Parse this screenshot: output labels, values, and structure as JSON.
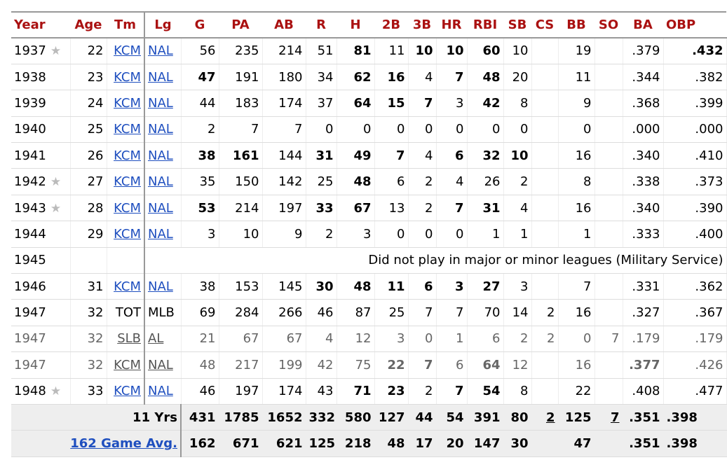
{
  "columns": [
    "Year",
    "Age",
    "Tm",
    "Lg",
    "G",
    "PA",
    "AB",
    "R",
    "H",
    "2B",
    "3B",
    "HR",
    "RBI",
    "SB",
    "CS",
    "BB",
    "SO",
    "BA",
    "OBP"
  ],
  "rows": [
    {
      "type": "season",
      "star": true,
      "style": "",
      "cells": [
        {
          "v": "1937"
        },
        {
          "v": "22"
        },
        {
          "v": "KCM",
          "link": true
        },
        {
          "v": "NAL",
          "link": true
        },
        {
          "v": "56"
        },
        {
          "v": "235"
        },
        {
          "v": "214"
        },
        {
          "v": "51"
        },
        {
          "v": "81",
          "b": true
        },
        {
          "v": "11"
        },
        {
          "v": "10",
          "b": true
        },
        {
          "v": "10",
          "b": true
        },
        {
          "v": "60",
          "b": true
        },
        {
          "v": "10"
        },
        {
          "v": ""
        },
        {
          "v": "19"
        },
        {
          "v": ""
        },
        {
          "v": ".379"
        },
        {
          "v": ".432",
          "b": true
        }
      ]
    },
    {
      "type": "season",
      "star": false,
      "style": "",
      "cells": [
        {
          "v": "1938"
        },
        {
          "v": "23"
        },
        {
          "v": "KCM",
          "link": true
        },
        {
          "v": "NAL",
          "link": true
        },
        {
          "v": "47",
          "b": true
        },
        {
          "v": "191"
        },
        {
          "v": "180"
        },
        {
          "v": "34"
        },
        {
          "v": "62",
          "b": true
        },
        {
          "v": "16",
          "b": true
        },
        {
          "v": "4"
        },
        {
          "v": "7",
          "b": true
        },
        {
          "v": "48",
          "b": true
        },
        {
          "v": "20"
        },
        {
          "v": ""
        },
        {
          "v": "11"
        },
        {
          "v": ""
        },
        {
          "v": ".344"
        },
        {
          "v": ".382"
        }
      ]
    },
    {
      "type": "season",
      "star": false,
      "style": "",
      "cells": [
        {
          "v": "1939"
        },
        {
          "v": "24"
        },
        {
          "v": "KCM",
          "link": true
        },
        {
          "v": "NAL",
          "link": true
        },
        {
          "v": "44"
        },
        {
          "v": "183"
        },
        {
          "v": "174"
        },
        {
          "v": "37"
        },
        {
          "v": "64",
          "b": true
        },
        {
          "v": "15",
          "b": true
        },
        {
          "v": "7",
          "b": true
        },
        {
          "v": "3"
        },
        {
          "v": "42",
          "b": true
        },
        {
          "v": "8"
        },
        {
          "v": ""
        },
        {
          "v": "9"
        },
        {
          "v": ""
        },
        {
          "v": ".368"
        },
        {
          "v": ".399"
        }
      ]
    },
    {
      "type": "season",
      "star": false,
      "style": "",
      "cells": [
        {
          "v": "1940"
        },
        {
          "v": "25"
        },
        {
          "v": "KCM",
          "link": true
        },
        {
          "v": "NAL",
          "link": true
        },
        {
          "v": "2"
        },
        {
          "v": "7"
        },
        {
          "v": "7"
        },
        {
          "v": "0"
        },
        {
          "v": "0"
        },
        {
          "v": "0"
        },
        {
          "v": "0"
        },
        {
          "v": "0"
        },
        {
          "v": "0"
        },
        {
          "v": "0"
        },
        {
          "v": ""
        },
        {
          "v": "0"
        },
        {
          "v": ""
        },
        {
          "v": ".000"
        },
        {
          "v": ".000"
        }
      ]
    },
    {
      "type": "season",
      "star": false,
      "style": "",
      "cells": [
        {
          "v": "1941"
        },
        {
          "v": "26"
        },
        {
          "v": "KCM",
          "link": true
        },
        {
          "v": "NAL",
          "link": true
        },
        {
          "v": "38",
          "b": true
        },
        {
          "v": "161",
          "b": true
        },
        {
          "v": "144"
        },
        {
          "v": "31",
          "b": true
        },
        {
          "v": "49",
          "b": true
        },
        {
          "v": "7",
          "b": true
        },
        {
          "v": "4"
        },
        {
          "v": "6",
          "b": true
        },
        {
          "v": "32",
          "b": true
        },
        {
          "v": "10",
          "b": true
        },
        {
          "v": ""
        },
        {
          "v": "16"
        },
        {
          "v": ""
        },
        {
          "v": ".340"
        },
        {
          "v": ".410"
        }
      ]
    },
    {
      "type": "season",
      "star": true,
      "style": "",
      "cells": [
        {
          "v": "1942"
        },
        {
          "v": "27"
        },
        {
          "v": "KCM",
          "link": true
        },
        {
          "v": "NAL",
          "link": true
        },
        {
          "v": "35"
        },
        {
          "v": "150"
        },
        {
          "v": "142"
        },
        {
          "v": "25"
        },
        {
          "v": "48",
          "b": true
        },
        {
          "v": "6"
        },
        {
          "v": "2"
        },
        {
          "v": "4"
        },
        {
          "v": "26"
        },
        {
          "v": "2"
        },
        {
          "v": ""
        },
        {
          "v": "8"
        },
        {
          "v": ""
        },
        {
          "v": ".338"
        },
        {
          "v": ".373"
        }
      ]
    },
    {
      "type": "season",
      "star": true,
      "style": "",
      "cells": [
        {
          "v": "1943"
        },
        {
          "v": "28"
        },
        {
          "v": "KCM",
          "link": true
        },
        {
          "v": "NAL",
          "link": true
        },
        {
          "v": "53",
          "b": true
        },
        {
          "v": "214"
        },
        {
          "v": "197"
        },
        {
          "v": "33",
          "b": true
        },
        {
          "v": "67",
          "b": true
        },
        {
          "v": "13"
        },
        {
          "v": "2"
        },
        {
          "v": "7",
          "b": true
        },
        {
          "v": "31",
          "b": true
        },
        {
          "v": "4"
        },
        {
          "v": ""
        },
        {
          "v": "16"
        },
        {
          "v": ""
        },
        {
          "v": ".340"
        },
        {
          "v": ".390"
        }
      ]
    },
    {
      "type": "season",
      "star": false,
      "style": "",
      "cells": [
        {
          "v": "1944"
        },
        {
          "v": "29"
        },
        {
          "v": "KCM",
          "link": true
        },
        {
          "v": "NAL",
          "link": true
        },
        {
          "v": "3"
        },
        {
          "v": "10"
        },
        {
          "v": "9"
        },
        {
          "v": "2"
        },
        {
          "v": "3"
        },
        {
          "v": "0"
        },
        {
          "v": "0"
        },
        {
          "v": "0"
        },
        {
          "v": "1"
        },
        {
          "v": "1"
        },
        {
          "v": ""
        },
        {
          "v": "1"
        },
        {
          "v": ""
        },
        {
          "v": ".333"
        },
        {
          "v": ".400"
        }
      ]
    },
    {
      "type": "note",
      "year": "1945",
      "text": "Did not play in major or minor leagues (Military Service)"
    },
    {
      "type": "season",
      "star": false,
      "style": "",
      "cells": [
        {
          "v": "1946"
        },
        {
          "v": "31"
        },
        {
          "v": "KCM",
          "link": true
        },
        {
          "v": "NAL",
          "link": true
        },
        {
          "v": "38"
        },
        {
          "v": "153"
        },
        {
          "v": "145"
        },
        {
          "v": "30",
          "b": true
        },
        {
          "v": "48",
          "b": true
        },
        {
          "v": "11",
          "b": true
        },
        {
          "v": "6",
          "b": true
        },
        {
          "v": "3",
          "b": true
        },
        {
          "v": "27",
          "b": true
        },
        {
          "v": "3"
        },
        {
          "v": ""
        },
        {
          "v": "7"
        },
        {
          "v": ""
        },
        {
          "v": ".331"
        },
        {
          "v": ".362"
        }
      ]
    },
    {
      "type": "season",
      "star": false,
      "style": "",
      "cells": [
        {
          "v": "1947"
        },
        {
          "v": "32"
        },
        {
          "v": "TOT"
        },
        {
          "v": "MLB"
        },
        {
          "v": "69"
        },
        {
          "v": "284"
        },
        {
          "v": "266"
        },
        {
          "v": "46"
        },
        {
          "v": "87"
        },
        {
          "v": "25"
        },
        {
          "v": "7"
        },
        {
          "v": "7"
        },
        {
          "v": "70"
        },
        {
          "v": "14"
        },
        {
          "v": "2"
        },
        {
          "v": "16"
        },
        {
          "v": ""
        },
        {
          "v": ".327"
        },
        {
          "v": ".367"
        }
      ]
    },
    {
      "type": "season",
      "star": false,
      "style": "minor",
      "cells": [
        {
          "v": "1947"
        },
        {
          "v": "32"
        },
        {
          "v": "SLB",
          "link": true
        },
        {
          "v": "AL",
          "link": true
        },
        {
          "v": "21"
        },
        {
          "v": "67"
        },
        {
          "v": "67"
        },
        {
          "v": "4"
        },
        {
          "v": "12"
        },
        {
          "v": "3"
        },
        {
          "v": "0"
        },
        {
          "v": "1"
        },
        {
          "v": "6"
        },
        {
          "v": "2"
        },
        {
          "v": "2"
        },
        {
          "v": "0"
        },
        {
          "v": "7"
        },
        {
          "v": ".179"
        },
        {
          "v": ".179"
        }
      ]
    },
    {
      "type": "season",
      "star": false,
      "style": "minor",
      "cells": [
        {
          "v": "1947"
        },
        {
          "v": "32"
        },
        {
          "v": "KCM",
          "link": true
        },
        {
          "v": "NAL",
          "link": true
        },
        {
          "v": "48"
        },
        {
          "v": "217"
        },
        {
          "v": "199"
        },
        {
          "v": "42"
        },
        {
          "v": "75"
        },
        {
          "v": "22",
          "b": true
        },
        {
          "v": "7",
          "b": true
        },
        {
          "v": "6"
        },
        {
          "v": "64",
          "b": true
        },
        {
          "v": "12"
        },
        {
          "v": ""
        },
        {
          "v": "16"
        },
        {
          "v": ""
        },
        {
          "v": ".377",
          "b": true
        },
        {
          "v": ".426"
        }
      ]
    },
    {
      "type": "season",
      "star": true,
      "style": "",
      "cells": [
        {
          "v": "1948"
        },
        {
          "v": "33"
        },
        {
          "v": "KCM",
          "link": true
        },
        {
          "v": "NAL",
          "link": true
        },
        {
          "v": "46"
        },
        {
          "v": "197"
        },
        {
          "v": "174"
        },
        {
          "v": "43"
        },
        {
          "v": "71",
          "b": true
        },
        {
          "v": "23",
          "b": true
        },
        {
          "v": "2"
        },
        {
          "v": "7",
          "b": true
        },
        {
          "v": "54",
          "b": true
        },
        {
          "v": "8"
        },
        {
          "v": ""
        },
        {
          "v": "22"
        },
        {
          "v": ""
        },
        {
          "v": ".408"
        },
        {
          "v": ".477"
        }
      ]
    }
  ],
  "footer": [
    {
      "label": "11 Yrs",
      "link": false,
      "cells": [
        {
          "v": "431"
        },
        {
          "v": "1785"
        },
        {
          "v": "1652"
        },
        {
          "v": "332"
        },
        {
          "v": "580"
        },
        {
          "v": "127"
        },
        {
          "v": "44"
        },
        {
          "v": "54"
        },
        {
          "v": "391"
        },
        {
          "v": "80"
        },
        {
          "v": "2",
          "u": true
        },
        {
          "v": "125"
        },
        {
          "v": "7",
          "u": true
        },
        {
          "v": ".351"
        },
        {
          "v": ".398"
        }
      ]
    },
    {
      "label": "162 Game Avg.",
      "link": true,
      "cells": [
        {
          "v": "162"
        },
        {
          "v": "671"
        },
        {
          "v": "621"
        },
        {
          "v": "125"
        },
        {
          "v": "218"
        },
        {
          "v": "48"
        },
        {
          "v": "17"
        },
        {
          "v": "20"
        },
        {
          "v": "147"
        },
        {
          "v": "30"
        },
        {
          "v": ""
        },
        {
          "v": "47"
        },
        {
          "v": ""
        },
        {
          "v": ".351"
        },
        {
          "v": ".398"
        }
      ]
    }
  ],
  "star_glyph": "★"
}
